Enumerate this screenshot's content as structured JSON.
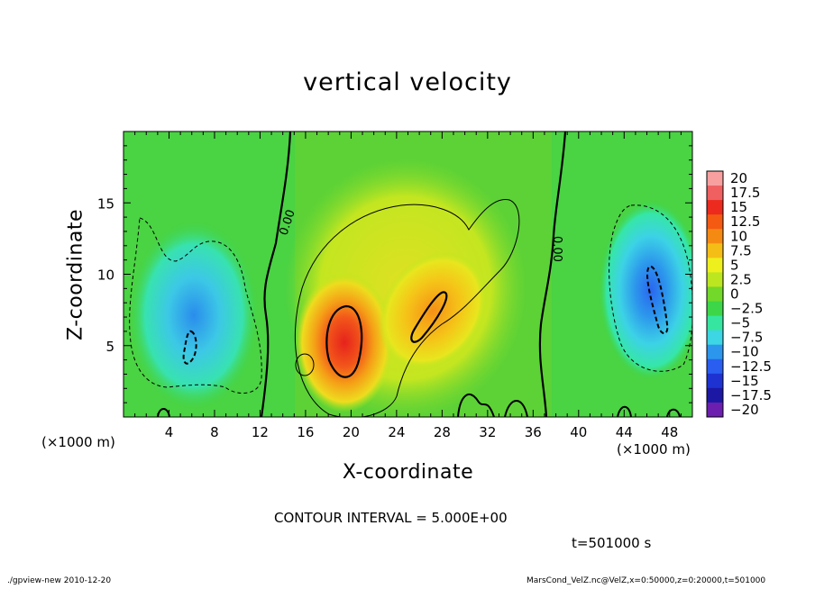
{
  "chart_data": {
    "type": "heatmap",
    "title": "vertical velocity",
    "xlabel": "X-coordinate",
    "ylabel": "Z-coordinate",
    "x_unit_label": "(×1000 m)",
    "xlim": [
      0,
      50
    ],
    "ylim": [
      0,
      20
    ],
    "x_ticks": [
      4,
      8,
      12,
      16,
      20,
      24,
      28,
      32,
      36,
      40,
      44,
      48
    ],
    "y_ticks": [
      5,
      10,
      15
    ],
    "colorbar": {
      "labels": [
        "20",
        "17.5",
        "15",
        "12.5",
        "10",
        "7.5",
        "5",
        "2.5",
        "0",
        "−2.5",
        "−5",
        "−7.5",
        "−10",
        "−12.5",
        "−15",
        "−17.5",
        "−20"
      ],
      "colors": [
        "#f8a0a0",
        "#f06060",
        "#ec2a1e",
        "#f45a12",
        "#f58a12",
        "#f5be16",
        "#eef01e",
        "#bce620",
        "#72d82a",
        "#3cd648",
        "#36e6a0",
        "#3cd6e4",
        "#2c96ec",
        "#2a5ef0",
        "#1e32d2",
        "#1c18a4",
        "#6c1eae"
      ]
    },
    "zero_contour_label": "0.00",
    "features": [
      {
        "kind": "updraft",
        "x": 19.5,
        "z": 5.5,
        "peak": 15
      },
      {
        "kind": "updraft",
        "x": 28,
        "z": 7,
        "peak": 7.5
      },
      {
        "kind": "downdraft",
        "x": 6,
        "z": 5,
        "peak": -7.5
      },
      {
        "kind": "downdraft",
        "x": 46.5,
        "z": 8,
        "peak": -10
      }
    ],
    "contour_interval": "CONTOUR INTERVAL = 5.000E+00",
    "time": "t=501000  s"
  },
  "footer": {
    "left": "./gpview-new   2010-12-20",
    "right": "MarsCond_VelZ.nc@VelZ,x=0:50000,z=0:20000,t=501000"
  }
}
